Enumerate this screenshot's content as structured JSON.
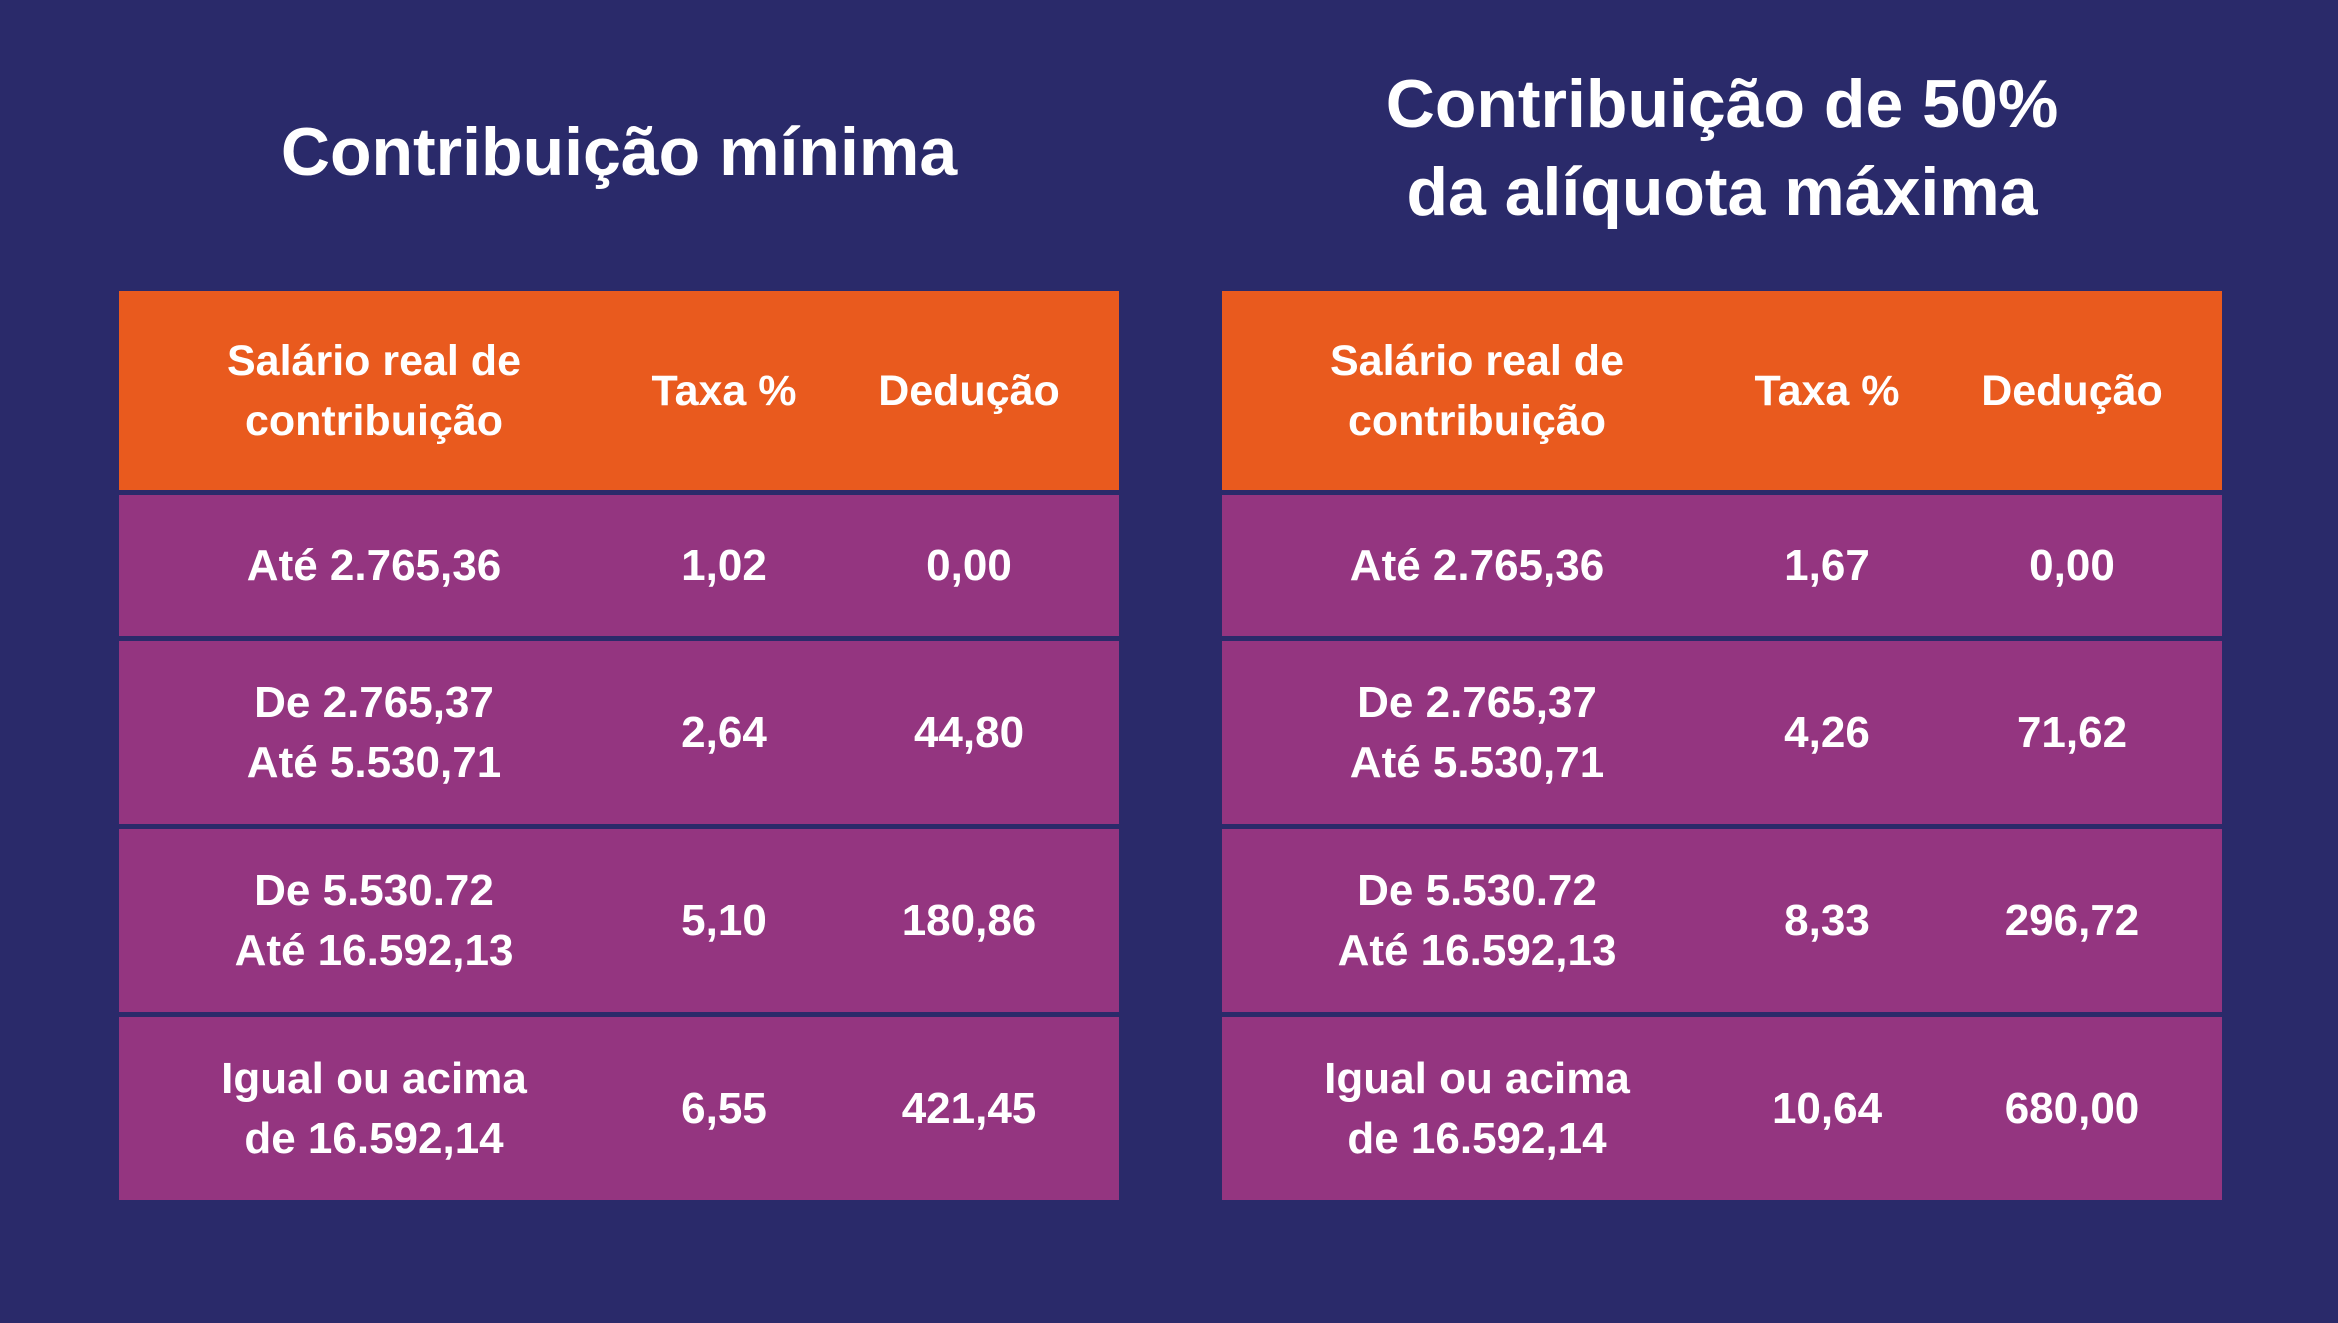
{
  "left": {
    "title_lines": [
      "Contribuição mínima"
    ],
    "headers": {
      "salary_lines": [
        "Salário real de",
        "contribuição"
      ],
      "rate": "Taxa %",
      "deduction": "Dedução"
    },
    "rows": [
      {
        "salary_lines": [
          "Até 2.765,36"
        ],
        "rate": "1,02",
        "deduction": "0,00"
      },
      {
        "salary_lines": [
          "De 2.765,37",
          "Até 5.530,71"
        ],
        "rate": "2,64",
        "deduction": "44,80"
      },
      {
        "salary_lines": [
          "De 5.530.72",
          "Até 16.592,13"
        ],
        "rate": "5,10",
        "deduction": "180,86"
      },
      {
        "salary_lines": [
          "Igual ou acima",
          "de 16.592,14"
        ],
        "rate": "6,55",
        "deduction": "421,45"
      }
    ]
  },
  "right": {
    "title_lines": [
      "Contribuição de 50%",
      "da alíquota máxima"
    ],
    "headers": {
      "salary_lines": [
        "Salário real de",
        "contribuição"
      ],
      "rate": "Taxa %",
      "deduction": "Dedução"
    },
    "rows": [
      {
        "salary_lines": [
          "Até 2.765,36"
        ],
        "rate": "1,67",
        "deduction": "0,00"
      },
      {
        "salary_lines": [
          "De 2.765,37",
          "Até 5.530,71"
        ],
        "rate": "4,26",
        "deduction": "71,62"
      },
      {
        "salary_lines": [
          "De 5.530.72",
          "Até 16.592,13"
        ],
        "rate": "8,33",
        "deduction": "296,72"
      },
      {
        "salary_lines": [
          "Igual ou acima",
          "de 16.592,14"
        ],
        "rate": "10,64",
        "deduction": "680,00"
      }
    ]
  },
  "colors": {
    "background": "#2a2a6a",
    "header": "#e95a1e",
    "row": "#943580",
    "text": "#ffffff"
  }
}
